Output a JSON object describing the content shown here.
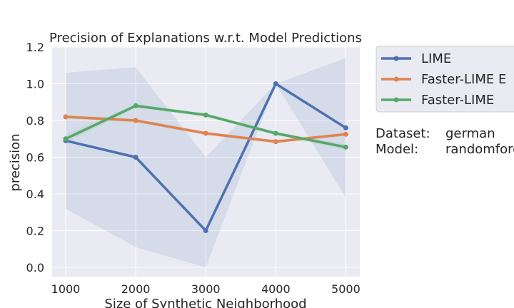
{
  "chart_data": {
    "type": "line",
    "title": "Precision of Explanations w.r.t. Model Predictions",
    "xlabel": "Size of Synthetic Neighborhood",
    "ylabel": "precision",
    "x": [
      1000,
      2000,
      3000,
      4000,
      5000
    ],
    "x_ticks": [
      "1000",
      "2000",
      "3000",
      "4000",
      "5000"
    ],
    "y_ticks": [
      "0.0",
      "0.2",
      "0.4",
      "0.6",
      "0.8",
      "1.0",
      "1.2"
    ],
    "ylim": [
      -0.05,
      1.2
    ],
    "grid": true,
    "series": [
      {
        "name": "LIME",
        "color": "#4c72b0",
        "values": [
          0.69,
          0.6,
          0.2,
          1.0,
          0.76
        ],
        "band_low": [
          0.32,
          0.11,
          0.0,
          1.0,
          0.38
        ],
        "band_high": [
          1.06,
          1.09,
          0.6,
          1.0,
          1.14
        ]
      },
      {
        "name": "Faster-LIME E",
        "color": "#dd8452",
        "values": [
          0.82,
          0.8,
          0.73,
          0.685,
          0.725
        ],
        "band_low": [
          0.81,
          0.79,
          0.72,
          0.675,
          0.715
        ],
        "band_high": [
          0.83,
          0.81,
          0.74,
          0.695,
          0.735
        ]
      },
      {
        "name": "Faster-LIME",
        "color": "#55a868",
        "values": [
          0.7,
          0.88,
          0.83,
          0.73,
          0.655
        ],
        "band_low": [
          0.68,
          0.87,
          0.82,
          0.72,
          0.64
        ],
        "band_high": [
          0.72,
          0.89,
          0.84,
          0.74,
          0.67
        ]
      }
    ],
    "legend_position": "outside-right"
  },
  "info": {
    "dataset_label": "Dataset:",
    "dataset_value": "german",
    "model_label": "Model:",
    "model_value": "randomforest"
  }
}
